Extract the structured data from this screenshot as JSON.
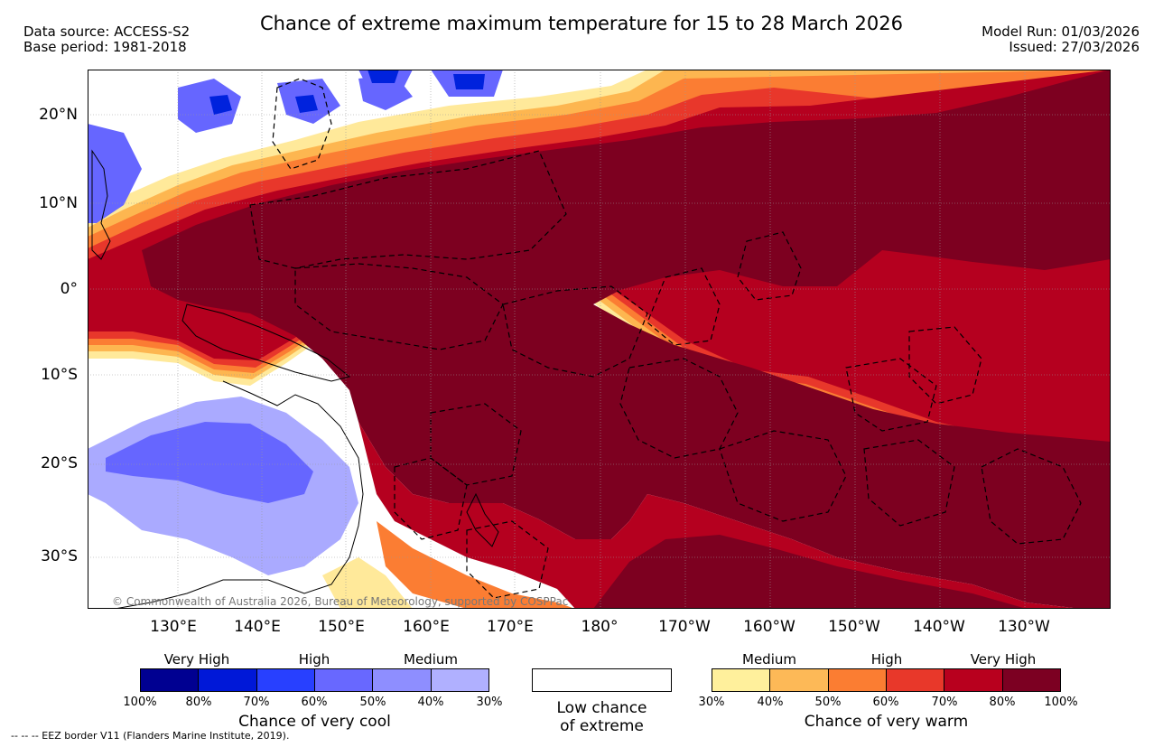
{
  "header": {
    "title": "Chance of extreme maximum temperature for 15 to 28 March 2026",
    "data_source": "Data source: ACCESS-S2",
    "base_period": "Base period: 1981-2018",
    "model_run": "Model Run: 01/03/2026",
    "issued": "Issued: 27/03/2026"
  },
  "map": {
    "lat_labels": [
      "20°N",
      "10°N",
      "0°",
      "10°S",
      "20°S",
      "30°S"
    ],
    "lon_labels": [
      "130°E",
      "140°E",
      "150°E",
      "160°E",
      "170°E",
      "180°",
      "170°W",
      "160°W",
      "150°W",
      "140°W",
      "130°W"
    ],
    "copyright": "© Commonwealth of Australia 2026, Bureau of Meteorology, supported by COSPPac",
    "colors": {
      "very_warm_100": "#7d0020",
      "warm_80": "#b5001f",
      "warm_70": "#e8372b",
      "warm_60": "#fb7d33",
      "warm_50": "#fdb650",
      "warm_40": "#ffe99a",
      "cool_light": "#aaaaff",
      "cool_mid": "#6666ff",
      "cool_dark": "#0022dd",
      "land": "#000000"
    }
  },
  "legend": {
    "cool": {
      "category_labels": [
        "Very High",
        "High",
        "Medium"
      ],
      "colors": [
        "#000091",
        "#0018d8",
        "#2840ff",
        "#6868ff",
        "#8e8eff",
        "#b0b0ff"
      ],
      "ticks": [
        "100%",
        "80%",
        "70%",
        "60%",
        "50%",
        "40%",
        "30%"
      ],
      "caption": "Chance of very cool"
    },
    "low": {
      "caption_line1": "Low chance",
      "caption_line2": "of extreme"
    },
    "warm": {
      "category_labels": [
        "Medium",
        "High",
        "Very High"
      ],
      "colors": [
        "#fff09c",
        "#fdb957",
        "#fb7d32",
        "#e8382a",
        "#b8001e",
        "#7c0022"
      ],
      "ticks": [
        "30%",
        "40%",
        "50%",
        "60%",
        "70%",
        "80%",
        "100%"
      ],
      "caption": "Chance of very warm"
    }
  },
  "footer": "--  --  -- EEZ border V11 (Flanders Marine Institute, 2019)."
}
